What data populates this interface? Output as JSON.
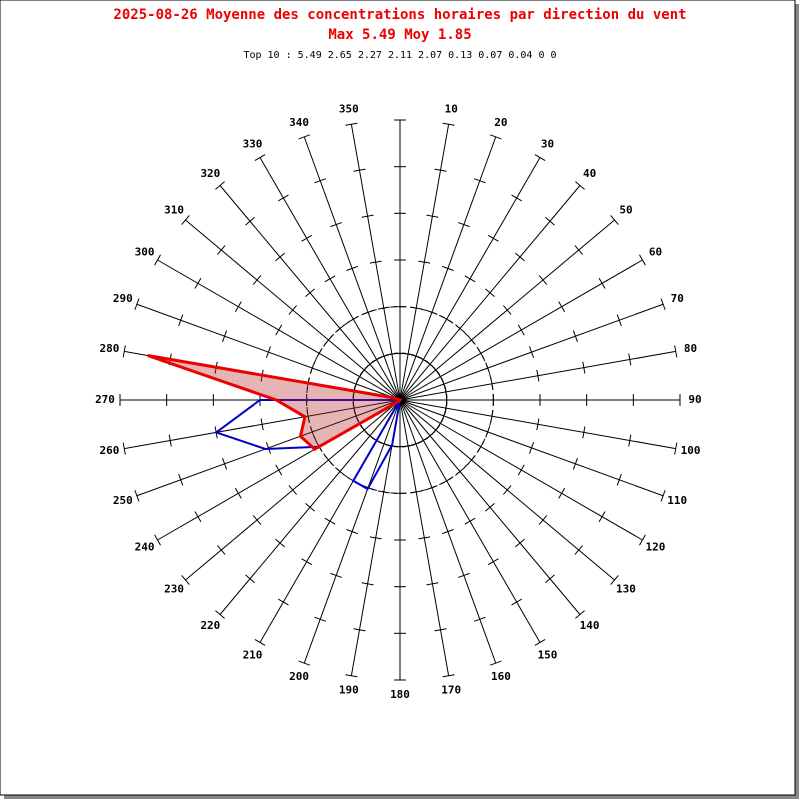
{
  "chart_data": {
    "type": "polar",
    "title": "2025-08-26 Moyenne des concentrations horaires par direction du vent",
    "subtitle": "Max 5.49 Moy 1.85",
    "note": "Top 10 : 5.49 2.65 2.27 2.11 2.07 0.13 0.07 0.04 0 0",
    "categories": [
      null,
      10,
      20,
      30,
      40,
      50,
      60,
      70,
      80,
      90,
      100,
      110,
      120,
      130,
      140,
      150,
      160,
      170,
      180,
      190,
      200,
      210,
      220,
      230,
      240,
      250,
      260,
      270,
      280,
      290,
      300,
      310,
      320,
      330,
      340,
      350
    ],
    "rlim": [
      0,
      6
    ],
    "rticks": [
      1,
      2,
      3,
      4,
      5,
      6
    ],
    "rings": [
      {
        "value": 1,
        "style": "solid"
      },
      {
        "value": 2,
        "style": "dashed"
      }
    ],
    "series": [
      {
        "color": "#0000cc",
        "fill": "none",
        "values": [
          0,
          0,
          0,
          0,
          0,
          0,
          0,
          0,
          0,
          0,
          0,
          0,
          0,
          0,
          0,
          0,
          0,
          0,
          0,
          0.98,
          2.03,
          2.0,
          0,
          0,
          2.0,
          3.07,
          4.0,
          3.0,
          0,
          0,
          0,
          0,
          0,
          0,
          0,
          0
        ]
      },
      {
        "color": "#ee0000",
        "fill": "rgba(180,40,40,0.35)",
        "values": [
          0,
          0,
          0,
          0,
          0,
          0,
          0,
          0,
          0,
          0,
          0,
          0,
          0,
          0,
          0,
          0,
          0,
          0,
          0,
          0,
          0,
          0,
          0.04,
          0.07,
          2.11,
          2.27,
          2.07,
          2.65,
          5.49,
          0.13,
          0,
          0,
          0,
          0,
          0,
          0
        ]
      }
    ]
  }
}
